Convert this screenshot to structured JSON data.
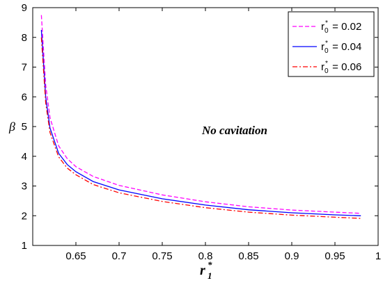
{
  "chart_data": {
    "type": "line",
    "title": "",
    "xlabel": "r1*",
    "xlabel_main": "r",
    "xlabel_sub": "1",
    "xlabel_sup": "*",
    "ylabel": "β",
    "xlim": [
      0.6,
      1.0
    ],
    "ylim": [
      1,
      9
    ],
    "xticks": [
      0.65,
      0.7,
      0.75,
      0.8,
      0.85,
      0.9,
      0.95,
      1
    ],
    "xtick_labels": [
      "0.65",
      "0.7",
      "0.75",
      "0.8",
      "0.85",
      "0.9",
      "0.95",
      "1"
    ],
    "yticks": [
      1,
      2,
      3,
      4,
      5,
      6,
      7,
      8,
      9
    ],
    "ytick_labels": [
      "1",
      "2",
      "3",
      "4",
      "5",
      "6",
      "7",
      "8",
      "9"
    ],
    "grid": false,
    "legend_position": "top-right",
    "annotation": "No cavitation",
    "series": [
      {
        "name": "r0* = 0.02",
        "legend_main": "r",
        "legend_sub": "0",
        "legend_sup": "*",
        "legend_value": " = 0.02",
        "color": "#ff00ff",
        "dash": "dashed",
        "x": [
          0.61,
          0.615,
          0.62,
          0.63,
          0.64,
          0.65,
          0.67,
          0.7,
          0.75,
          0.8,
          0.85,
          0.9,
          0.95,
          0.98
        ],
        "y": [
          8.75,
          6.4,
          5.3,
          4.35,
          3.92,
          3.65,
          3.32,
          3.02,
          2.7,
          2.47,
          2.3,
          2.19,
          2.12,
          2.08
        ]
      },
      {
        "name": "r0* = 0.04",
        "legend_main": "r",
        "legend_sub": "0",
        "legend_sup": "*",
        "legend_value": " = 0.04",
        "color": "#0000ff",
        "dash": "solid",
        "x": [
          0.61,
          0.615,
          0.62,
          0.63,
          0.64,
          0.65,
          0.67,
          0.7,
          0.75,
          0.8,
          0.85,
          0.9,
          0.95,
          0.98
        ],
        "y": [
          8.25,
          6.0,
          4.95,
          4.1,
          3.72,
          3.48,
          3.15,
          2.87,
          2.57,
          2.36,
          2.2,
          2.1,
          2.03,
          2.0
        ]
      },
      {
        "name": "r0* = 0.06",
        "legend_main": "r",
        "legend_sub": "0",
        "legend_sup": "*",
        "legend_value": " = 0.06",
        "color": "#ff0000",
        "dash": "dashdot",
        "x": [
          0.61,
          0.615,
          0.62,
          0.63,
          0.64,
          0.65,
          0.67,
          0.7,
          0.75,
          0.8,
          0.85,
          0.9,
          0.95,
          0.98
        ],
        "y": [
          8.0,
          5.8,
          4.8,
          3.98,
          3.6,
          3.38,
          3.05,
          2.77,
          2.48,
          2.27,
          2.12,
          2.02,
          1.95,
          1.91
        ]
      }
    ]
  }
}
